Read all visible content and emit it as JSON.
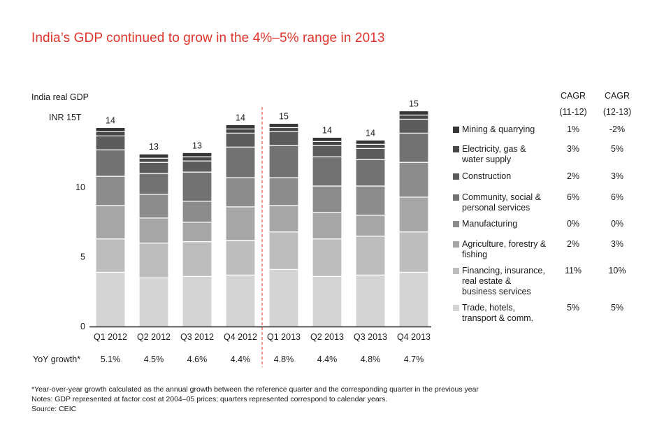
{
  "title": "India’s GDP continued to grow in the 4%–5% range in 2013",
  "colors": {
    "title": "#e0352b",
    "divider": "#e0352b",
    "segments": [
      "#d4d4d4",
      "#bdbdbd",
      "#a6a6a6",
      "#8c8c8c",
      "#727272",
      "#5c5c5c",
      "#484848",
      "#353535"
    ]
  },
  "chart_data": {
    "type": "stacked-bar",
    "title": "India’s GDP continued to grow in the 4%–5% range in 2013",
    "ylabel": "India real GDP",
    "unit_label": "INR 15T",
    "ylim": [
      0,
      15
    ],
    "yticks": [
      "0",
      "5",
      "10"
    ],
    "categories": [
      "Q1 2012",
      "Q2 2012",
      "Q3 2012",
      "Q4 2012",
      "Q1 2013",
      "Q2 2013",
      "Q3 2013",
      "Q4 2013"
    ],
    "totals_labels": [
      "14",
      "13",
      "13",
      "14",
      "15",
      "14",
      "14",
      "15"
    ],
    "series": [
      {
        "name": "Trade, hotels,\ntransport & comm.",
        "values": [
          3.9,
          3.5,
          3.6,
          3.7,
          4.1,
          3.6,
          3.7,
          3.9
        ]
      },
      {
        "name": "Financing, insurance,\nreal estate &\nbusiness services",
        "values": [
          2.4,
          2.5,
          2.5,
          2.5,
          2.7,
          2.7,
          2.8,
          2.9
        ]
      },
      {
        "name": "Agriculture, forestry &\nfishing",
        "values": [
          2.4,
          1.8,
          1.4,
          2.4,
          1.9,
          1.9,
          1.5,
          2.5
        ]
      },
      {
        "name": "Manufacturing",
        "values": [
          2.1,
          1.7,
          1.5,
          2.1,
          2.0,
          1.9,
          2.1,
          2.5
        ]
      },
      {
        "name": "Community, social &\npersonal services",
        "values": [
          1.9,
          1.5,
          2.1,
          2.2,
          2.3,
          2.1,
          1.9,
          2.1
        ]
      },
      {
        "name": "Construction",
        "values": [
          1.0,
          0.8,
          0.8,
          1.0,
          1.0,
          0.8,
          0.8,
          1.0
        ]
      },
      {
        "name": "Electricity, gas &\nwater supply",
        "values": [
          0.3,
          0.3,
          0.3,
          0.3,
          0.3,
          0.3,
          0.3,
          0.3
        ]
      },
      {
        "name": "Mining & quarrying",
        "values": [
          0.3,
          0.3,
          0.3,
          0.3,
          0.3,
          0.3,
          0.3,
          0.3
        ]
      }
    ],
    "yoy_label": "YoY growth*",
    "yoy": [
      "5.1%",
      "4.5%",
      "4.6%",
      "4.4%",
      "4.8%",
      "4.4%",
      "4.8%",
      "4.7%"
    ]
  },
  "legend": [
    {
      "label": "Mining & quarrying",
      "cagr_11_12": "1%",
      "cagr_12_13": "-2%"
    },
    {
      "label": "Electricity, gas &\nwater supply",
      "cagr_11_12": "3%",
      "cagr_12_13": "5%"
    },
    {
      "label": "Construction",
      "cagr_11_12": "2%",
      "cagr_12_13": "3%"
    },
    {
      "label": "Community, social &\npersonal services",
      "cagr_11_12": "6%",
      "cagr_12_13": "6%"
    },
    {
      "label": "Manufacturing",
      "cagr_11_12": "0%",
      "cagr_12_13": "0%"
    },
    {
      "label": "Agriculture, forestry &\nfishing",
      "cagr_11_12": "2%",
      "cagr_12_13": "3%"
    },
    {
      "label": "Financing, insurance,\nreal estate &\nbusiness services",
      "cagr_11_12": "11%",
      "cagr_12_13": "10%"
    },
    {
      "label": "Trade, hotels,\ntransport & comm.",
      "cagr_11_12": "5%",
      "cagr_12_13": "5%"
    }
  ],
  "cagr_headers": {
    "col1_line1": "CAGR",
    "col1_line2": "(11-12)",
    "col2_line1": "CAGR",
    "col2_line2": "(12-13)"
  },
  "footnotes": {
    "line1": "*Year-over-year growth calculated as the annual growth between the reference quarter and the corresponding quarter in the previous year",
    "line2": "Notes: GDP represented at factor cost at 2004–05 prices; quarters represented correspond to calendar years.",
    "line3": "Source: CEIC"
  }
}
